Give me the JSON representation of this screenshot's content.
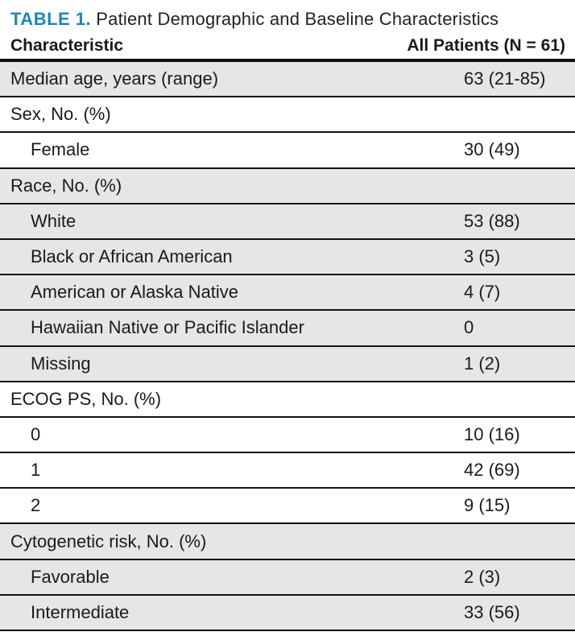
{
  "caption": {
    "label": "TABLE 1.",
    "title": "Patient Demographic and Baseline Characteristics"
  },
  "header": {
    "characteristic": "Characteristic",
    "all_patients": "All Patients (N = 61)"
  },
  "rows": [
    {
      "label": "Median age, years (range)",
      "value": "63 (21-85)",
      "indent": false,
      "shaded": true
    },
    {
      "label": "Sex, No. (%)",
      "value": "",
      "indent": false,
      "shaded": false
    },
    {
      "label": "Female",
      "value": "30 (49)",
      "indent": true,
      "shaded": false
    },
    {
      "label": "Race, No. (%)",
      "value": "",
      "indent": false,
      "shaded": true
    },
    {
      "label": "White",
      "value": "53 (88)",
      "indent": true,
      "shaded": true
    },
    {
      "label": "Black or African American",
      "value": "3 (5)",
      "indent": true,
      "shaded": true
    },
    {
      "label": "American or Alaska Native",
      "value": "4 (7)",
      "indent": true,
      "shaded": true
    },
    {
      "label": "Hawaiian Native or Pacific Islander",
      "value": "0",
      "indent": true,
      "shaded": true
    },
    {
      "label": "Missing",
      "value": "1 (2)",
      "indent": true,
      "shaded": true
    },
    {
      "label": "ECOG PS, No. (%)",
      "value": "",
      "indent": false,
      "shaded": false
    },
    {
      "label": "0",
      "value": "10 (16)",
      "indent": true,
      "shaded": false
    },
    {
      "label": "1",
      "value": "42 (69)",
      "indent": true,
      "shaded": false
    },
    {
      "label": "2",
      "value": "9 (15)",
      "indent": true,
      "shaded": false
    },
    {
      "label": "Cytogenetic risk, No. (%)",
      "value": "",
      "indent": false,
      "shaded": true
    },
    {
      "label": "Favorable",
      "value": "2 (3)",
      "indent": true,
      "shaded": true
    },
    {
      "label": "Intermediate",
      "value": "33 (56)",
      "indent": true,
      "shaded": true
    }
  ]
}
